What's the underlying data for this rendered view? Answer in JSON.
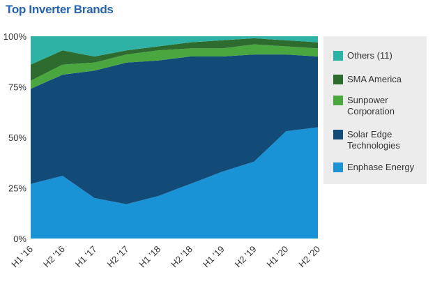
{
  "chart_data": {
    "type": "area",
    "stacked": true,
    "title": "Top Inverter Brands",
    "categories": [
      "H1 '16",
      "H2 '16",
      "H1 '17",
      "H2 '17",
      "H1 '18",
      "H2 '18",
      "H1 '19",
      "H2 '19",
      "H1 '20",
      "H2 '20"
    ],
    "ylim": [
      0,
      100
    ],
    "yticks": [
      "0%",
      "25%",
      "50%",
      "75%",
      "100%"
    ],
    "legend_position": "right",
    "series": [
      {
        "name": "Enphase Energy",
        "color": "#1a93d6",
        "values": [
          27,
          31,
          20,
          17,
          21,
          27,
          33,
          38,
          53,
          55
        ]
      },
      {
        "name": "Solar Edge Technologies",
        "color": "#124b78",
        "values": [
          47,
          50,
          63,
          70,
          67,
          63,
          57,
          53,
          38,
          35
        ]
      },
      {
        "name": "Sunpower Corporation",
        "color": "#4aa740",
        "values": [
          4,
          5,
          4,
          4,
          5,
          4,
          4,
          5,
          4,
          4
        ]
      },
      {
        "name": "SMA America",
        "color": "#2e6b2f",
        "values": [
          8,
          7,
          3,
          2,
          2,
          3,
          4,
          3,
          3,
          3
        ]
      },
      {
        "name": "Others (11)",
        "color": "#2fb2a6",
        "values": [
          14,
          7,
          10,
          7,
          5,
          3,
          2,
          1,
          2,
          3
        ]
      }
    ],
    "legend_order": [
      "Others (11)",
      "SMA America",
      "Sunpower Corporation",
      "Solar Edge Technologies",
      "Enphase Energy"
    ]
  }
}
